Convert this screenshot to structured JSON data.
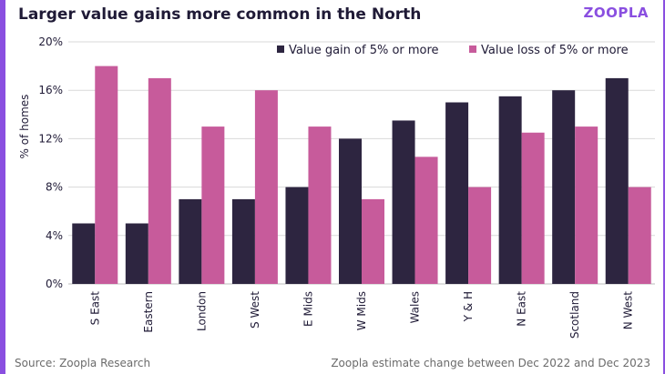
{
  "header": {
    "title": "Larger value gains more common in the North",
    "logo": "ZOOPLA"
  },
  "footer": {
    "source": "Source: Zoopla Research",
    "note": "Zoopla estimate change between Dec 2022 and Dec 2023"
  },
  "chart_data": {
    "type": "bar",
    "title": "Larger value gains more common in the North",
    "xlabel": "",
    "ylabel": "% of homes",
    "ylim": [
      0,
      20
    ],
    "yticks": [
      0,
      4,
      8,
      12,
      16,
      20
    ],
    "ytick_labels": [
      "0%",
      "4%",
      "8%",
      "12%",
      "16%",
      "20%"
    ],
    "grid": true,
    "legend_position": "top-right",
    "categories": [
      "S East",
      "Eastern",
      "London",
      "S West",
      "E Mids",
      "W Mids",
      "Wales",
      "Y & H",
      "N East",
      "Scotland",
      "N West"
    ],
    "series": [
      {
        "name": "Value gain of 5% or more",
        "color": "#2d2540",
        "values": [
          5,
          5,
          7,
          7,
          8,
          12,
          13.5,
          15,
          15.5,
          16,
          17
        ]
      },
      {
        "name": "Value loss of 5% or more",
        "color": "#c75b9b",
        "values": [
          18,
          17,
          13,
          16,
          13,
          7,
          10.5,
          8,
          12.5,
          13,
          8
        ]
      }
    ]
  }
}
